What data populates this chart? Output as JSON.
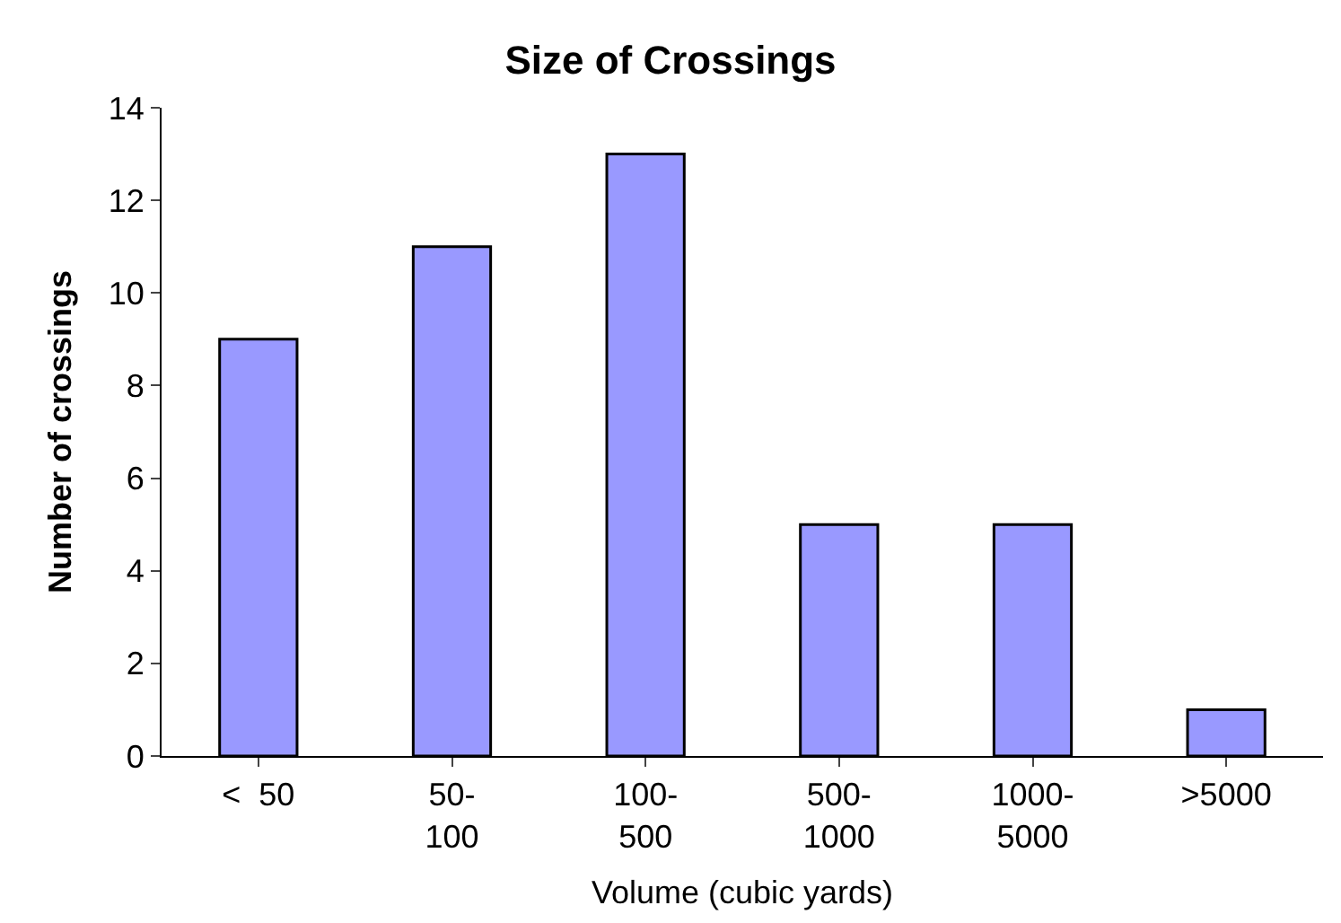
{
  "chart_data": {
    "type": "bar",
    "title": "Size of Crossings",
    "xlabel": "Volume (cubic yards)",
    "ylabel": "Number of crossings",
    "categories": [
      "<  50",
      "50-\n100",
      "100-\n500",
      "500-\n1000",
      "1000-\n5000",
      ">5000"
    ],
    "values": [
      9,
      11,
      13,
      5,
      5,
      1
    ],
    "color": "#9999ff",
    "ylim": [
      0,
      14
    ],
    "yticks": [
      0,
      2,
      4,
      6,
      8,
      10,
      12,
      14
    ],
    "legend": false
  }
}
